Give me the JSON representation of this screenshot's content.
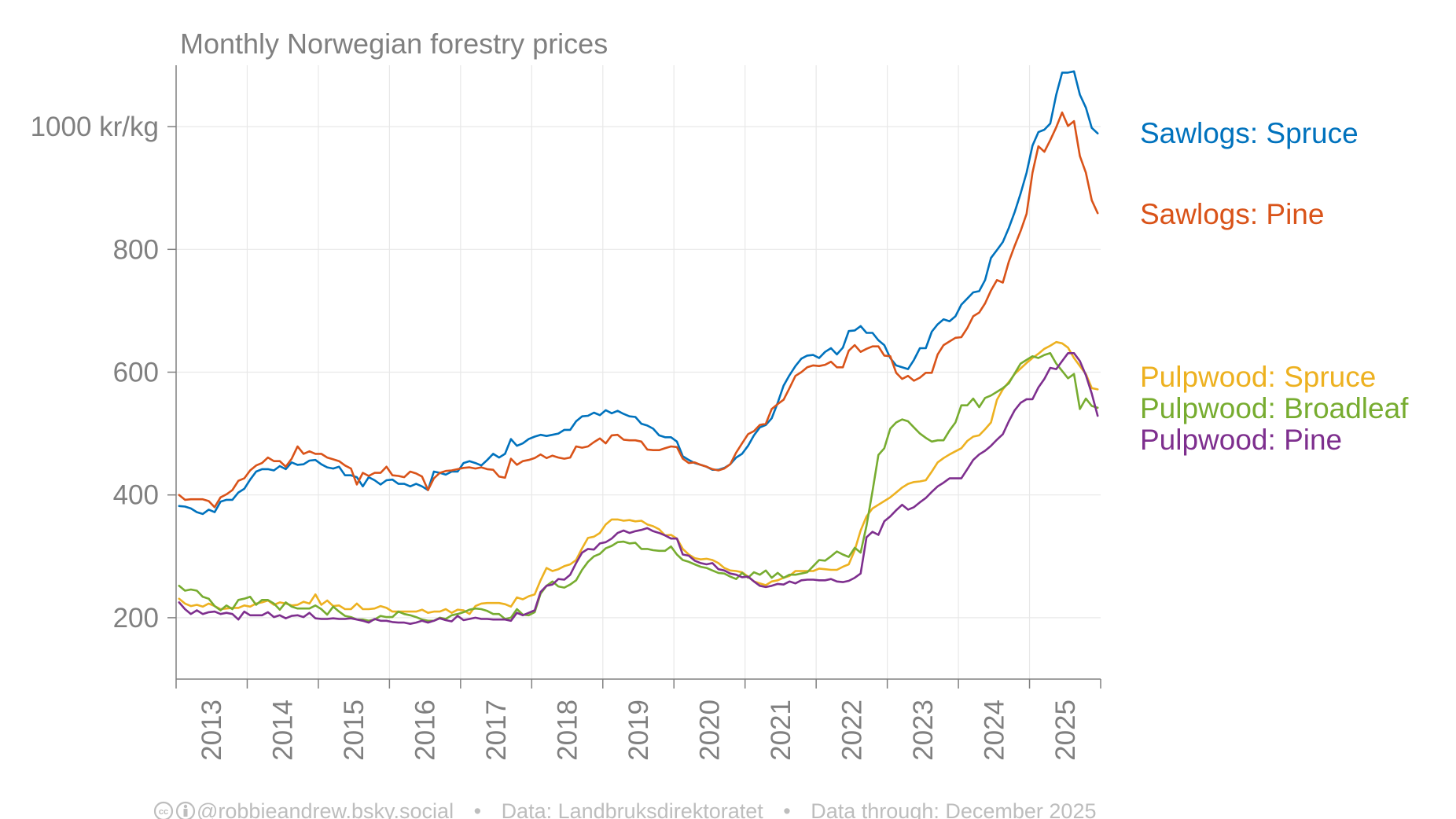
{
  "chart_data": {
    "type": "line",
    "title": "Monthly Norwegian forestry prices",
    "xlabel": "",
    "ylabel": "",
    "y_unit_label": "kr/kg",
    "ylim": [
      100,
      1100
    ],
    "xlim": [
      2013,
      2026
    ],
    "grid": true,
    "legend_placement": "right (labels at line ends)",
    "yticks": [
      200,
      400,
      600,
      800,
      1000
    ],
    "ytick_labels": [
      "200",
      "400",
      "600",
      "800",
      "1000 kr/kg"
    ],
    "xtick_labels": [
      "2013",
      "2014",
      "2015",
      "2016",
      "2017",
      "2018",
      "2019",
      "2020",
      "2021",
      "2022",
      "2023",
      "2024",
      "2025"
    ],
    "x_start": "2013-01",
    "x_frequency": "monthly",
    "x_count": 156,
    "series": [
      {
        "name": "Sawlogs: Spruce",
        "color": "#0072bd",
        "values": [
          382,
          381,
          378,
          372,
          369,
          376,
          372,
          389,
          392,
          392,
          404,
          410,
          425,
          438,
          442,
          442,
          440,
          447,
          442,
          453,
          449,
          450,
          456,
          457,
          450,
          445,
          443,
          446,
          432,
          432,
          429,
          414,
          429,
          424,
          417,
          424,
          425,
          418,
          418,
          414,
          418,
          414,
          408,
          438,
          436,
          433,
          438,
          438,
          452,
          455,
          452,
          448,
          457,
          467,
          461,
          467,
          491,
          480,
          484,
          491,
          495,
          498,
          496,
          498,
          500,
          506,
          506,
          520,
          528,
          529,
          534,
          530,
          538,
          533,
          537,
          532,
          528,
          527,
          516,
          513,
          508,
          497,
          494,
          494,
          487,
          463,
          457,
          452,
          449,
          446,
          441,
          441,
          444,
          450,
          461,
          467,
          480,
          497,
          510,
          514,
          525,
          550,
          578,
          595,
          610,
          622,
          627,
          628,
          623,
          633,
          639,
          629,
          640,
          667,
          668,
          675,
          664,
          664,
          652,
          644,
          623,
          611,
          608,
          605,
          620,
          639,
          639,
          666,
          678,
          686,
          683,
          691,
          710,
          720,
          730,
          732,
          750,
          786,
          799,
          812,
          835,
          861,
          891,
          925,
          969,
          991,
          995,
          1005,
          1052,
          1088,
          1088,
          1090,
          1052,
          1031,
          998,
          989
        ]
      },
      {
        "name": "Sawlogs: Pine",
        "color": "#d95319",
        "values": [
          400,
          392,
          393,
          393,
          393,
          390,
          380,
          396,
          401,
          408,
          423,
          427,
          440,
          448,
          452,
          461,
          455,
          455,
          446,
          459,
          479,
          467,
          471,
          467,
          467,
          461,
          458,
          455,
          448,
          443,
          417,
          436,
          431,
          436,
          436,
          446,
          432,
          431,
          429,
          438,
          435,
          430,
          408,
          427,
          436,
          439,
          440,
          442,
          444,
          445,
          443,
          445,
          442,
          441,
          430,
          428,
          459,
          449,
          455,
          457,
          460,
          466,
          460,
          464,
          461,
          459,
          461,
          479,
          477,
          479,
          486,
          492,
          484,
          497,
          498,
          490,
          489,
          489,
          487,
          474,
          473,
          473,
          476,
          479,
          478,
          459,
          452,
          453,
          449,
          446,
          442,
          440,
          443,
          450,
          469,
          484,
          499,
          504,
          514,
          516,
          540,
          548,
          555,
          574,
          594,
          600,
          608,
          611,
          610,
          612,
          617,
          608,
          608,
          635,
          644,
          633,
          638,
          642,
          642,
          627,
          626,
          599,
          589,
          594,
          586,
          591,
          599,
          599,
          629,
          644,
          650,
          656,
          657,
          672,
          691,
          697,
          712,
          733,
          750,
          746,
          780,
          806,
          830,
          858,
          925,
          968,
          959,
          978,
          999,
          1023,
          1001,
          1009,
          952,
          925,
          880,
          859
        ]
      },
      {
        "name": "Pulpwood: Spruce",
        "color": "#edb120",
        "values": [
          231,
          223,
          219,
          221,
          218,
          223,
          219,
          214,
          215,
          216,
          216,
          220,
          218,
          223,
          225,
          228,
          221,
          225,
          223,
          220,
          221,
          226,
          223,
          238,
          221,
          228,
          219,
          220,
          214,
          214,
          223,
          214,
          214,
          215,
          219,
          216,
          210,
          210,
          210,
          210,
          210,
          213,
          208,
          210,
          210,
          214,
          208,
          213,
          212,
          206,
          219,
          223,
          224,
          224,
          224,
          222,
          218,
          233,
          230,
          235,
          238,
          261,
          281,
          276,
          279,
          284,
          287,
          294,
          313,
          330,
          332,
          338,
          352,
          360,
          360,
          358,
          359,
          357,
          358,
          352,
          349,
          344,
          334,
          335,
          329,
          312,
          303,
          297,
          295,
          296,
          294,
          289,
          281,
          277,
          276,
          274,
          267,
          259,
          256,
          253,
          259,
          261,
          265,
          268,
          276,
          276,
          276,
          276,
          280,
          279,
          278,
          278,
          283,
          287,
          310,
          342,
          365,
          378,
          384,
          390,
          396,
          404,
          412,
          418,
          421,
          422,
          424,
          438,
          453,
          460,
          466,
          471,
          476,
          488,
          495,
          497,
          507,
          518,
          555,
          572,
          584,
          597,
          606,
          615,
          623,
          630,
          638,
          643,
          649,
          647,
          640,
          623,
          610,
          597,
          574,
          572
        ]
      },
      {
        "name": "Pulpwood: Broadleaf",
        "color": "#77ac30",
        "values": [
          252,
          244,
          246,
          244,
          234,
          231,
          219,
          212,
          220,
          214,
          229,
          231,
          234,
          221,
          229,
          229,
          223,
          213,
          225,
          218,
          215,
          215,
          215,
          220,
          214,
          205,
          218,
          210,
          203,
          201,
          197,
          197,
          195,
          197,
          203,
          201,
          201,
          210,
          206,
          204,
          201,
          197,
          195,
          195,
          200,
          198,
          204,
          206,
          209,
          213,
          215,
          214,
          211,
          206,
          206,
          198,
          200,
          214,
          205,
          204,
          209,
          239,
          252,
          259,
          251,
          249,
          254,
          261,
          278,
          291,
          300,
          304,
          313,
          317,
          323,
          324,
          321,
          322,
          312,
          312,
          310,
          309,
          309,
          316,
          303,
          294,
          291,
          287,
          283,
          281,
          277,
          273,
          272,
          267,
          263,
          273,
          265,
          274,
          270,
          277,
          265,
          273,
          265,
          270,
          270,
          272,
          274,
          284,
          294,
          293,
          300,
          308,
          303,
          299,
          314,
          306,
          350,
          406,
          465,
          476,
          508,
          518,
          523,
          520,
          510,
          500,
          493,
          487,
          489,
          489,
          505,
          518,
          546,
          546,
          557,
          543,
          558,
          562,
          568,
          574,
          582,
          598,
          614,
          620,
          626,
          623,
          628,
          631,
          614,
          602,
          590,
          597,
          540,
          557,
          545,
          542
        ]
      },
      {
        "name": "Pulpwood: Pine",
        "color": "#7e2f8e",
        "values": [
          225,
          214,
          206,
          212,
          206,
          209,
          210,
          206,
          208,
          206,
          197,
          210,
          204,
          204,
          204,
          209,
          201,
          204,
          199,
          203,
          204,
          201,
          208,
          199,
          198,
          198,
          199,
          198,
          198,
          199,
          197,
          195,
          192,
          198,
          195,
          195,
          193,
          192,
          192,
          190,
          192,
          195,
          192,
          195,
          199,
          196,
          194,
          203,
          196,
          198,
          200,
          198,
          198,
          197,
          197,
          197,
          195,
          208,
          204,
          208,
          212,
          242,
          252,
          254,
          263,
          262,
          270,
          289,
          306,
          312,
          311,
          321,
          323,
          329,
          338,
          342,
          338,
          341,
          343,
          346,
          341,
          338,
          334,
          329,
          329,
          303,
          301,
          293,
          289,
          287,
          289,
          279,
          277,
          272,
          270,
          266,
          267,
          259,
          252,
          250,
          252,
          255,
          254,
          259,
          256,
          261,
          262,
          262,
          261,
          261,
          263,
          259,
          258,
          260,
          265,
          272,
          331,
          340,
          335,
          357,
          365,
          375,
          384,
          376,
          380,
          388,
          395,
          405,
          414,
          420,
          427,
          427,
          427,
          442,
          457,
          466,
          472,
          480,
          490,
          499,
          520,
          538,
          550,
          556,
          556,
          575,
          589,
          607,
          605,
          618,
          631,
          631,
          618,
          595,
          565,
          529
        ]
      }
    ]
  },
  "footer": {
    "cc_icon": "cc-icon",
    "by_icon": "attribution-icon",
    "handle": "@robbieandrew.bsky.social",
    "separator": "•",
    "source": "Data: Landbruksdirektoratet",
    "through": "Data through: December 2025"
  }
}
